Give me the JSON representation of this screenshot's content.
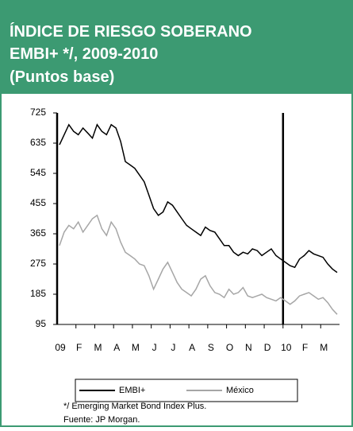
{
  "chart_data": {
    "type": "line",
    "title_lines": [
      "ÍNDICE DE RIESGO SOBERANO",
      "EMBI+ */, 2009-2010",
      "(Puntos base)"
    ],
    "categories": [
      "09",
      null,
      null,
      null,
      "F",
      null,
      null,
      null,
      "M",
      null,
      null,
      null,
      "A",
      null,
      null,
      null,
      "M",
      null,
      null,
      null,
      "J",
      null,
      null,
      null,
      "J",
      null,
      null,
      null,
      "A",
      null,
      null,
      null,
      "S",
      null,
      null,
      null,
      "O",
      null,
      null,
      null,
      "N",
      null,
      null,
      null,
      "D",
      null,
      null,
      null,
      "10",
      null,
      null,
      null,
      "F",
      null,
      null,
      null,
      "M",
      null,
      null,
      null
    ],
    "series": [
      {
        "name": "EMBI+",
        "color": "#000000",
        "values": [
          630,
          660,
          690,
          670,
          660,
          680,
          665,
          650,
          690,
          670,
          660,
          690,
          680,
          640,
          580,
          570,
          560,
          540,
          520,
          480,
          440,
          420,
          430,
          460,
          450,
          430,
          410,
          390,
          380,
          370,
          360,
          385,
          375,
          370,
          350,
          330,
          330,
          310,
          300,
          310,
          305,
          320,
          315,
          300,
          310,
          320,
          300,
          290,
          280,
          270,
          265,
          290,
          300,
          315,
          305,
          300,
          295,
          275,
          260,
          250
        ]
      },
      {
        "name": "México",
        "color": "#a6a6a6",
        "values": [
          330,
          370,
          390,
          380,
          400,
          370,
          390,
          410,
          420,
          380,
          360,
          400,
          380,
          340,
          310,
          300,
          290,
          275,
          270,
          240,
          200,
          230,
          260,
          280,
          250,
          220,
          200,
          190,
          180,
          200,
          230,
          240,
          210,
          190,
          185,
          175,
          200,
          185,
          190,
          205,
          180,
          175,
          180,
          185,
          175,
          170,
          165,
          175,
          165,
          155,
          165,
          180,
          185,
          190,
          180,
          170,
          175,
          160,
          140,
          125
        ]
      }
    ],
    "ylim": [
      95,
      725
    ],
    "yticks": [
      95,
      185,
      275,
      365,
      455,
      545,
      635,
      725
    ],
    "notes": [
      "*/ Emerging Market Bond Index Plus.",
      "Fuente:  JP Morgan."
    ]
  }
}
